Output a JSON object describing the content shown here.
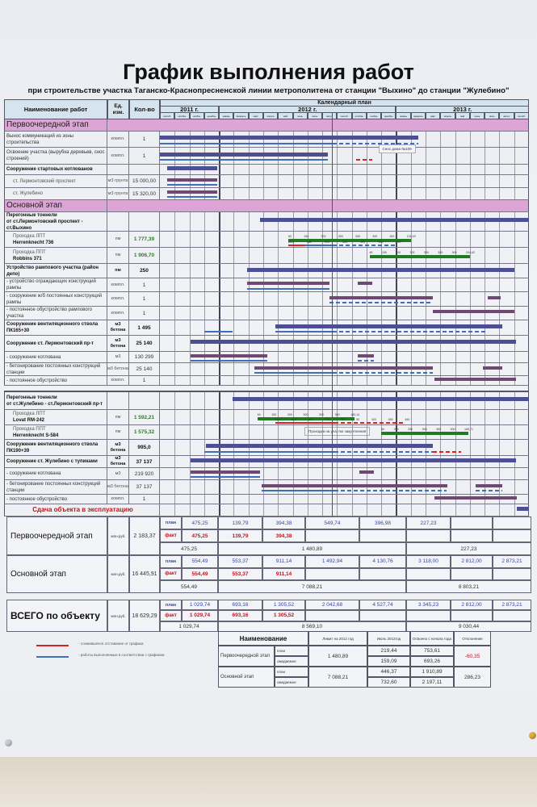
{
  "title": "График выполнения работ",
  "subtitle": "при строительстве участка Таганско-Краснопресненской линии метрополитена от  станции \"Выхино\" до станции \"Жулебино\"",
  "colors": {
    "section": "#dca5d6",
    "plan": "#4c4f91",
    "plan_alt": "#6e4a72",
    "fact": "#3f6fb8",
    "delay": "#d22222",
    "tbm": "#1f7a22",
    "today": "#e01a1a"
  },
  "header": {
    "name": "Наименование работ",
    "unit": "Ед. изм.",
    "qty": "Кол-во",
    "calendar": "Календарный план",
    "years": [
      {
        "label": "2011 г.",
        "months": 4
      },
      {
        "label": "2012 г.",
        "months": 12
      },
      {
        "label": "2013 г.",
        "months": 9
      }
    ],
    "months": [
      "сентяб.",
      "октябрь",
      "ноябрь",
      "декабрь",
      "январь",
      "февраль",
      "март",
      "апрель",
      "май",
      "июнь",
      "июль",
      "август",
      "сентяб.",
      "октябрь",
      "ноябрь",
      "декабрь",
      "январь",
      "февраль",
      "март",
      "апрель",
      "май",
      "июнь",
      "июль",
      "август",
      "сентяб."
    ]
  },
  "gantt": {
    "today_month": 11.65,
    "rows": [
      {
        "kind": "section",
        "name": "Первоочередной этап",
        "bars": []
      },
      {
        "kind": "plain",
        "name": "Вынос коммуникаций из зоны строительства",
        "unit": "компл.",
        "qty": "1",
        "bars": [
          {
            "t": "plan",
            "s": 0,
            "e": 17.5
          },
          {
            "t": "fact",
            "s": 0,
            "e": 11.7
          },
          {
            "t": "factd",
            "s": 11.7,
            "e": 17.5
          }
        ]
      },
      {
        "kind": "plain",
        "name": "Освоение участка (вырубка деревьев, снос строений)",
        "unit": "компл.",
        "qty": "1",
        "bars": [
          {
            "t": "plan",
            "s": 0,
            "e": 11.4
          },
          {
            "t": "fact",
            "s": 0,
            "e": 11.4
          },
          {
            "t": "redd",
            "s": 13.3,
            "e": 14.4,
            "note": "Снос дома №109"
          }
        ]
      },
      {
        "kind": "group",
        "name": "Сооружение стартовых котлованов",
        "bars": [
          {
            "t": "plan",
            "s": 0.5,
            "e": 3.9
          }
        ]
      },
      {
        "kind": "item",
        "name": "ст. Лермонтовский проспект",
        "unit": "м3 грунта",
        "qty": "15 000,00",
        "bars": [
          {
            "t": "plan2",
            "s": 0.5,
            "e": 3.9
          },
          {
            "t": "fact",
            "s": 0.5,
            "e": 3.9
          }
        ]
      },
      {
        "kind": "item",
        "name": "ст. Жулебино",
        "unit": "м3 грунта",
        "qty": "15 320,00",
        "bars": [
          {
            "t": "plan2",
            "s": 0.5,
            "e": 3.9
          },
          {
            "t": "fact",
            "s": 0.5,
            "e": 3.9
          }
        ]
      },
      {
        "kind": "section",
        "name": "Основной этап",
        "bars": []
      },
      {
        "kind": "group",
        "name": "Перегонные тоннели",
        "model": "от ст.Лермонтовский проспект - ст.Выхино",
        "bars": [
          {
            "t": "plan",
            "s": 6.8,
            "e": 25
          }
        ]
      },
      {
        "kind": "item tunnel",
        "name": "Проходка ЛПТ",
        "model": "Herrenknecht 736",
        "unit": "пм",
        "qty": "1 777,39",
        "bars": [
          {
            "t": "green",
            "s": 8.7,
            "e": 17.0,
            "labels": [
              "60",
              "150",
              "300",
              "300",
              "300",
              "300",
              "300",
              "131,49"
            ]
          },
          {
            "t": "red",
            "s": 8.7,
            "e": 9.8
          },
          {
            "t": "fact",
            "s": 9.8,
            "e": 11.7
          },
          {
            "t": "factd",
            "s": 11.7,
            "e": 16.0,
            "labels": [
              "25,2",
              "280",
              "259",
              "300",
              "300",
              "300",
              "200"
            ],
            "ls": 8.7
          }
        ]
      },
      {
        "kind": "item tunnel",
        "name": "Проходка ППТ",
        "model": "Robbins 371",
        "unit": "пм",
        "qty": "1 906,70",
        "bars": [
          {
            "t": "green",
            "s": 14.2,
            "e": 21.0,
            "labels": [
              "60",
              "150",
              "300",
              "300",
              "300",
              "300",
              "300",
              "204,42"
            ]
          }
        ]
      },
      {
        "kind": "bold",
        "name": "Устройство рампового участка (район депо)",
        "unit": "пм",
        "qty": "250",
        "bars": [
          {
            "t": "plan",
            "s": 5.9,
            "e": 24
          }
        ]
      },
      {
        "kind": "plain",
        "name": "- устройство ограждающих конструкций рампы",
        "unit": "компл.",
        "qty": "1",
        "bars": [
          {
            "t": "plan2",
            "s": 5.9,
            "e": 11.5
          },
          {
            "t": "fact",
            "s": 5.9,
            "e": 11.5
          },
          {
            "t": "plan2",
            "s": 13.4,
            "e": 14.4
          }
        ]
      },
      {
        "kind": "plain",
        "name": "- сооружение ж/б постоянных конструкций рампы",
        "unit": "компл.",
        "qty": "1",
        "bars": [
          {
            "t": "plan2",
            "s": 11.5,
            "e": 18.5
          },
          {
            "t": "factd",
            "s": 11.5,
            "e": 18.5
          },
          {
            "t": "plan2",
            "s": 22.2,
            "e": 23.1
          }
        ]
      },
      {
        "kind": "plain",
        "name": "- постоянное обустройство рампового участка",
        "unit": "компл.",
        "qty": "1",
        "bars": [
          {
            "t": "plan2",
            "s": 18.5,
            "e": 24
          }
        ]
      },
      {
        "kind": "bold",
        "name": "Сооружение вентиляционного ствола ПК165+30",
        "unit": "м3 бетона",
        "qty": "1 495",
        "bars": [
          {
            "t": "plan",
            "s": 7.8,
            "e": 23.2
          },
          {
            "t": "fact",
            "s": 3.0,
            "e": 4.9
          },
          {
            "t": "fact",
            "s": 7.8,
            "e": 11.7
          },
          {
            "t": "factd",
            "s": 11.7,
            "e": 22.2
          }
        ]
      },
      {
        "kind": "bold",
        "name": "Сооружение ст. Лермонтовский пр-т",
        "unit": "м3 бетона",
        "qty": "25 140",
        "bars": [
          {
            "t": "plan",
            "s": 2.1,
            "e": 24.1
          }
        ]
      },
      {
        "kind": "plain",
        "name": "- сооружение котлована",
        "unit": "м3",
        "qty": "130 299",
        "bars": [
          {
            "t": "plan2",
            "s": 2.1,
            "e": 7.3
          },
          {
            "t": "fact",
            "s": 2.1,
            "e": 7.3
          },
          {
            "t": "plan2",
            "s": 13.4,
            "e": 14.5
          },
          {
            "t": "factd",
            "s": 13.4,
            "e": 14.5
          }
        ]
      },
      {
        "kind": "plain",
        "name": "- бетонирование постоянных конструкций станции",
        "unit": "м3 бетона",
        "qty": "25 140",
        "bars": [
          {
            "t": "plan2",
            "s": 6.4,
            "e": 18.5
          },
          {
            "t": "fact",
            "s": 6.4,
            "e": 11.7
          },
          {
            "t": "factd",
            "s": 11.7,
            "e": 18.5
          },
          {
            "t": "plan2",
            "s": 21.9,
            "e": 23.2
          }
        ]
      },
      {
        "kind": "plain",
        "name": "- постоянное обустройство",
        "unit": "компл.",
        "qty": "1",
        "bars": [
          {
            "t": "plan2",
            "s": 18.6,
            "e": 24.1
          }
        ]
      },
      {
        "kind": "gap",
        "bars": []
      },
      {
        "kind": "group",
        "name": "Перегонные тоннели",
        "model": "от ст.Жулебино - ст.Лермонтовский пр-т",
        "bars": [
          {
            "t": "plan",
            "s": 4.9,
            "e": 25
          }
        ]
      },
      {
        "kind": "item tunnel",
        "name": "Проходка ЛПТ",
        "model": "Lovat RM-242",
        "unit": "пм",
        "qty": "1 592,21",
        "bars": [
          {
            "t": "green",
            "s": 6.6,
            "e": 13.2,
            "labels": [
              "60",
              "150",
              "300",
              "300",
              "300",
              "300",
              "180,14"
            ]
          },
          {
            "t": "red",
            "s": 7.8,
            "e": 11.8
          },
          {
            "t": "redd",
            "s": 11.8,
            "e": 16.6,
            "labels": [
              "9,8",
              "44,8",
              "60,2",
              "22",
              "73",
              "50",
              "420",
              "450",
              "450"
            ],
            "ls": 7.8,
            "note": "Проходка на участке закрепления"
          }
        ]
      },
      {
        "kind": "item tunnel",
        "name": "Проходка ППТ",
        "model": "Herrenknecht S-584",
        "unit": "пм",
        "qty": "1 575,32",
        "bars": [
          {
            "t": "green",
            "s": 15.0,
            "e": 20.9,
            "labels": [
              "60",
              "200",
              "250",
              "300",
              "300",
              "300",
              "165,71"
            ]
          }
        ]
      },
      {
        "kind": "bold",
        "name": "Сооружение вентиляционного ствола ПК190+39",
        "unit": "м3 бетона",
        "qty": "995,0",
        "bars": [
          {
            "t": "plan",
            "s": 3.1,
            "e": 18.5
          },
          {
            "t": "fact",
            "s": 3.0,
            "e": 11.8
          },
          {
            "t": "factd",
            "s": 11.8,
            "e": 18.5
          },
          {
            "t": "redd",
            "s": 18.5,
            "e": 20.4
          }
        ]
      },
      {
        "kind": "bold",
        "name": "Сооружение ст. Жулебино с тупиками",
        "unit": "м3 бетона",
        "qty": "37 137",
        "bars": [
          {
            "t": "plan",
            "s": 2.1,
            "e": 24.1
          }
        ]
      },
      {
        "kind": "plain",
        "name": "- сооружение котлована",
        "unit": "м3",
        "qty": "219 920",
        "bars": [
          {
            "t": "plan2",
            "s": 2.1,
            "e": 6.8
          },
          {
            "t": "fact",
            "s": 2.1,
            "e": 6.8
          },
          {
            "t": "plan2",
            "s": 13.5,
            "e": 14.5
          }
        ]
      },
      {
        "kind": "plain",
        "name": "- бетонирование постоянных конструкций станции",
        "unit": "м3 бетона",
        "qty": "37 137",
        "bars": [
          {
            "t": "plan2",
            "s": 6.9,
            "e": 19.5
          },
          {
            "t": "fact",
            "s": 6.9,
            "e": 11.8
          },
          {
            "t": "factd",
            "s": 11.8,
            "e": 19.4
          },
          {
            "t": "plan2",
            "s": 21.4,
            "e": 23.2
          },
          {
            "t": "factd",
            "s": 21.4,
            "e": 23.2
          }
        ]
      },
      {
        "kind": "plain",
        "name": "- постоянное обустройство",
        "unit": "компл.",
        "qty": "1",
        "bars": [
          {
            "t": "plan2",
            "s": 18.6,
            "e": 24.2
          }
        ]
      },
      {
        "kind": "handover",
        "name": "Сдача объекта в эксплуатацию",
        "bars": [
          {
            "t": "plan",
            "s": 24.2,
            "e": 25
          }
        ]
      }
    ]
  },
  "finance": {
    "plan_label": "план",
    "fact_label": "факт",
    "blocks": [
      {
        "name": "Первоочередной этап",
        "unit": "млн.руб.",
        "total": "2 183,37",
        "plan": [
          "475,25",
          "139,79",
          "394,38",
          "549,74",
          "396,98",
          "227,23",
          "",
          ""
        ],
        "fact": [
          "475,25",
          "139,79",
          "394,38"
        ],
        "sub": [
          "475,25",
          "1 480,89",
          "227,23"
        ]
      },
      {
        "name": "Основной этап",
        "unit": "млн.руб.",
        "total": "16 445,91",
        "plan": [
          "554,49",
          "553,37",
          "911,14",
          "1 492,94",
          "4 130,76",
          "3 118,00",
          "2 812,00",
          "2 873,21"
        ],
        "fact": [
          "554,49",
          "553,37",
          "911,14"
        ],
        "sub": [
          "554,49",
          "7 088,21",
          "8 803,21"
        ]
      },
      {
        "name": "ВСЕГО по объекту",
        "unit": "млн.руб.",
        "total": "18 629,29",
        "plan": [
          "1 029,74",
          "693,16",
          "1 305,52",
          "2 042,68",
          "4 527,74",
          "3 345,23",
          "2 812,00",
          "2 873,21"
        ],
        "fact": [
          "1 029,74",
          "693,16",
          "1 305,52"
        ],
        "sub": [
          "1 029,74",
          "8 569,10",
          "9 030,44"
        ]
      }
    ]
  },
  "legend": [
    {
      "color": "#d22222",
      "text": "- сложившееся отставание от графика"
    },
    {
      "color": "#3f6fb8",
      "text": "- работы выполняемые в соответствии с  графиком"
    }
  ],
  "summary": {
    "headers": [
      "Наименование",
      "Лимит на 2012 год",
      "Июль 2012год",
      "Освоено с начала года",
      "Отклонение"
    ],
    "rows": [
      {
        "name": "Первоочередной этап",
        "l1": "план",
        "l2": "ожидаемое",
        "limit": "1 480,89",
        "july_plan": "219,44",
        "july_exp": "159,09",
        "ytd_plan": "753,61",
        "ytd_exp": "693,26",
        "dev": "-60,35"
      },
      {
        "name": "Основной этап",
        "l1": "план",
        "l2": "ожидаемое",
        "limit": "7 088,21",
        "july_plan": "446,37",
        "july_exp": "732,60",
        "ytd_plan": "1 910,89",
        "ytd_exp": "2 197,11",
        "dev": "286,23"
      }
    ]
  }
}
